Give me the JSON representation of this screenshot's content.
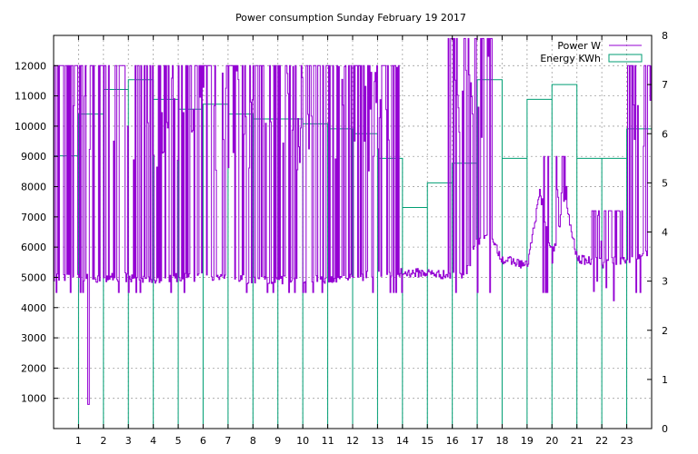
{
  "chart_data": {
    "type": "line",
    "title": "Power consumption Sunday February 19 2017",
    "xlim": [
      0,
      24
    ],
    "x_ticks": [
      1,
      2,
      3,
      4,
      5,
      6,
      7,
      8,
      9,
      10,
      11,
      12,
      13,
      14,
      15,
      16,
      17,
      18,
      19,
      20,
      21,
      22,
      23
    ],
    "y_left": {
      "lim": [
        0,
        13000
      ],
      "ticks": [
        1000,
        2000,
        3000,
        4000,
        5000,
        6000,
        7000,
        8000,
        9000,
        10000,
        11000,
        12000
      ]
    },
    "y_right": {
      "lim": [
        0,
        8
      ],
      "ticks": [
        0,
        1,
        2,
        3,
        4,
        5,
        6,
        7,
        8
      ]
    },
    "grid": true,
    "legend_position": "top-right",
    "colors": {
      "power": "#9400d3",
      "energy": "#009e73",
      "grid": "#a0a0a0"
    },
    "series": [
      {
        "name": "Power W",
        "axis": "left",
        "style": "line",
        "baseline": [
          [
            0,
            5000
          ],
          [
            0.5,
            4950
          ],
          [
            1,
            5050
          ],
          [
            1.5,
            4950
          ],
          [
            2,
            5000
          ],
          [
            2.5,
            5000
          ],
          [
            3,
            5000
          ],
          [
            4,
            4950
          ],
          [
            5,
            5000
          ],
          [
            6,
            5000
          ],
          [
            7,
            5000
          ],
          [
            8,
            4900
          ],
          [
            9,
            4900
          ],
          [
            10,
            4950
          ],
          [
            11,
            4950
          ],
          [
            12,
            5000
          ],
          [
            13,
            5100
          ],
          [
            14,
            5150
          ],
          [
            15,
            5150
          ],
          [
            16,
            5050
          ],
          [
            16.5,
            5000
          ],
          [
            17,
            6200
          ],
          [
            17.5,
            6300
          ],
          [
            18,
            5600
          ],
          [
            19,
            5400
          ],
          [
            19.5,
            7800
          ],
          [
            20,
            5600
          ],
          [
            20.5,
            7600
          ],
          [
            21,
            5600
          ],
          [
            22,
            5500
          ],
          [
            23,
            5600
          ],
          [
            23.5,
            5700
          ],
          [
            24,
            5800
          ]
        ],
        "spike_regions": [
          {
            "x_range": [
              0,
              13.0
            ],
            "level": 12000
          },
          {
            "x_range": [
              13.0,
              14.0
            ],
            "level": 12000
          },
          {
            "x_range": [
              15.8,
              17.6
            ],
            "level": 12900
          },
          {
            "x_range": [
              19.6,
              20.6
            ],
            "level": 9000
          },
          {
            "x_range": [
              21.6,
              22.9
            ],
            "level": 7200
          },
          {
            "x_range": [
              23.0,
              24.0
            ],
            "level": 12000
          }
        ],
        "min_dip": {
          "x": 1.4,
          "y": 800
        }
      },
      {
        "name": "Energy KWh",
        "axis": "right",
        "style": "steps",
        "hours": [
          0,
          1,
          2,
          3,
          4,
          5,
          6,
          7,
          8,
          9,
          10,
          11,
          12,
          13,
          14,
          15,
          16,
          17,
          18,
          19,
          20,
          21,
          22,
          23
        ],
        "values": [
          5.55,
          6.4,
          6.9,
          7.1,
          6.7,
          6.5,
          6.6,
          6.4,
          6.3,
          6.3,
          6.2,
          6.1,
          6.0,
          5.5,
          4.5,
          5.0,
          5.4,
          7.1,
          5.5,
          6.7,
          7.0,
          5.5,
          5.5,
          6.1
        ]
      }
    ]
  }
}
